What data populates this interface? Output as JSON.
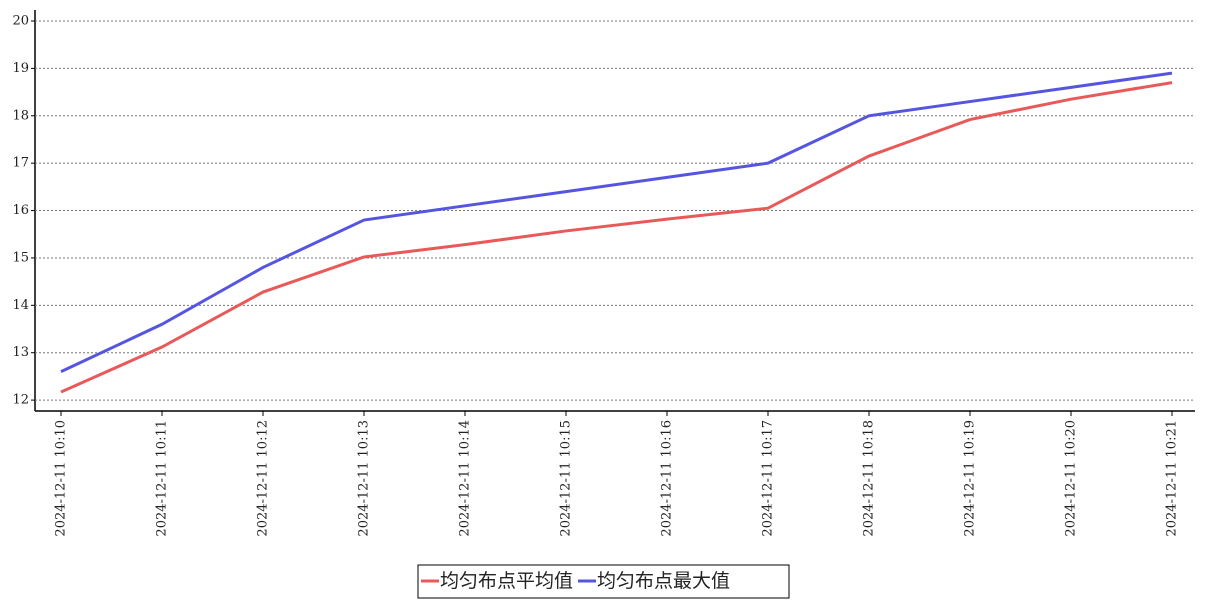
{
  "chart_data": {
    "type": "line",
    "categories": [
      "2024-12-11 10:10",
      "2024-12-11 10:11",
      "2024-12-11 10:12",
      "2024-12-11 10:13",
      "2024-12-11 10:14",
      "2024-12-11 10:15",
      "2024-12-11 10:16",
      "2024-12-11 10:17",
      "2024-12-11 10:18",
      "2024-12-11 10:19",
      "2024-12-11 10:20",
      "2024-12-11 10:21"
    ],
    "series": [
      {
        "name": "均匀布点平均值",
        "color": "#e85a5a",
        "values": [
          12.17,
          13.12,
          14.28,
          15.02,
          15.28,
          15.57,
          15.82,
          16.05,
          17.15,
          17.92,
          18.35,
          18.7
        ]
      },
      {
        "name": "均匀布点最大值",
        "color": "#5555e0",
        "values": [
          12.6,
          13.6,
          14.8,
          15.8,
          16.1,
          16.4,
          16.7,
          17.0,
          18.0,
          18.3,
          18.6,
          18.9
        ]
      }
    ],
    "ylim": [
      11.77,
      20.19
    ],
    "yticks": [
      12,
      13,
      14,
      15,
      16,
      17,
      18,
      19,
      20
    ],
    "grid": true,
    "legend": "bottom"
  }
}
